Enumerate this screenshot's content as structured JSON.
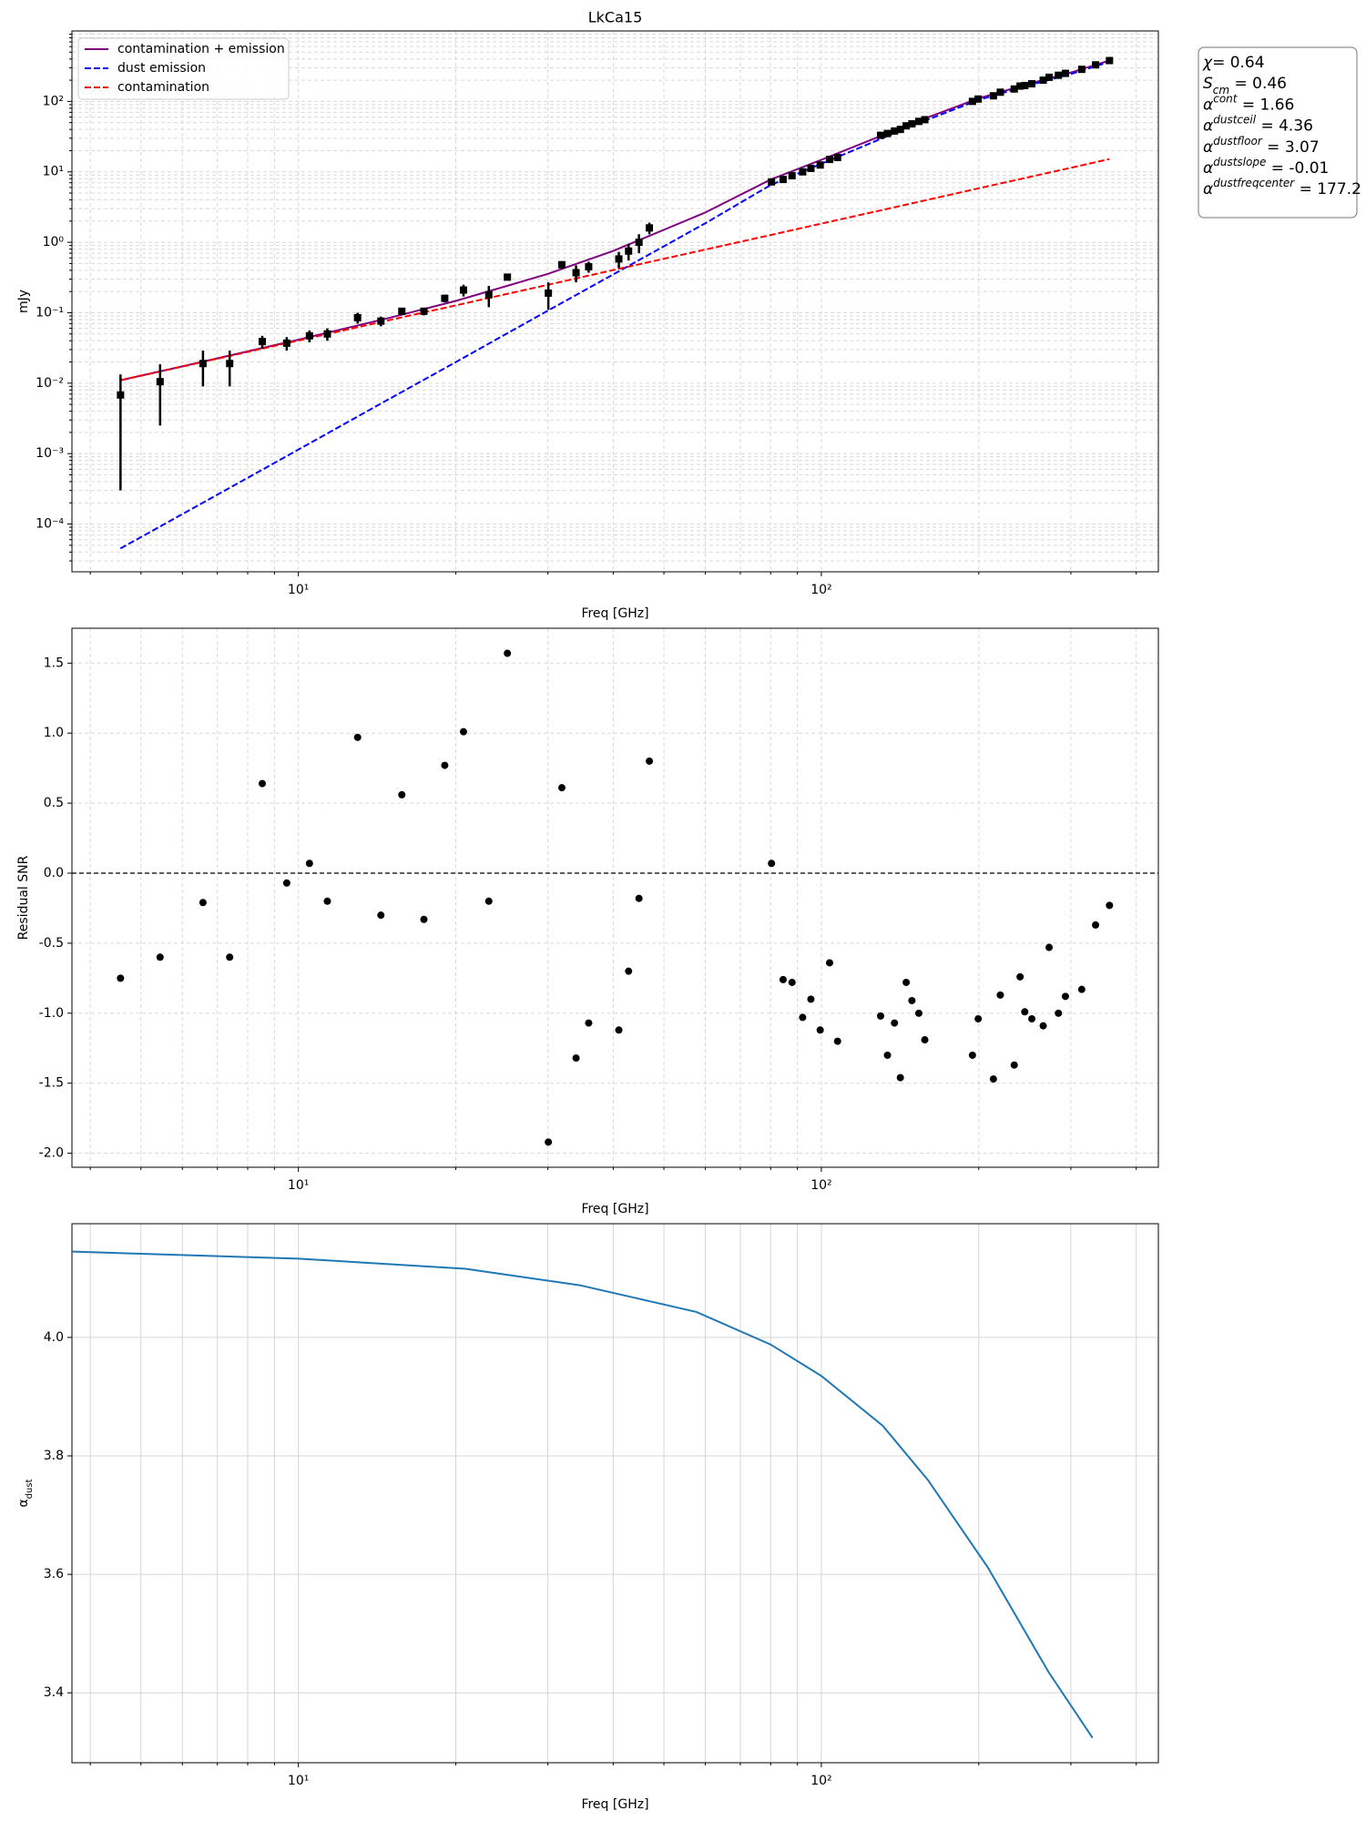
{
  "chart_data": [
    {
      "type": "line",
      "title": "LkCa15",
      "xlabel": "Freq [GHz]",
      "ylabel": "mJy",
      "xlog": true,
      "ylog": true,
      "grid": true,
      "grid_style": "dashed",
      "legend": "upper left",
      "xlim": [
        3.69,
        441
      ],
      "ylim": [
        2.1e-05,
        1000
      ],
      "xticks": [
        {
          "value": 10,
          "label": "10¹"
        },
        {
          "value": 100,
          "label": "10²"
        }
      ],
      "xminorticks": [
        4,
        5,
        6,
        7,
        8,
        9,
        20,
        30,
        40,
        50,
        60,
        70,
        80,
        90,
        200,
        300,
        400
      ],
      "yticks": [
        {
          "value": 0.0001,
          "label": "10⁻⁴"
        },
        {
          "value": 0.001,
          "label": "10⁻³"
        },
        {
          "value": 0.01,
          "label": "10⁻²"
        },
        {
          "value": 0.1,
          "label": "10⁻¹"
        },
        {
          "value": 1,
          "label": "10⁰"
        },
        {
          "value": 10,
          "label": "10¹"
        },
        {
          "value": 100,
          "label": "10²"
        }
      ],
      "yminorticks": [
        3e-05,
        4e-05,
        5e-05,
        6e-05,
        7e-05,
        8e-05,
        9e-05,
        0.0002,
        0.0003,
        0.0004,
        0.0005,
        0.0006,
        0.0007,
        0.0008,
        0.0009,
        0.002,
        0.003,
        0.004,
        0.005,
        0.006,
        0.007,
        0.008,
        0.009,
        0.02,
        0.03,
        0.04,
        0.05,
        0.06,
        0.07,
        0.08,
        0.09,
        0.2,
        0.3,
        0.4,
        0.5,
        0.6,
        0.7,
        0.8,
        0.9,
        2,
        3,
        4,
        5,
        6,
        7,
        8,
        9,
        20,
        30,
        40,
        50,
        60,
        70,
        80,
        90,
        200,
        300,
        400,
        500,
        600,
        700,
        800,
        900
      ],
      "series": [
        {
          "name": "contamination + emission",
          "color": "#800080",
          "linestyle": "solid",
          "x": [
            4.57,
            6,
            8,
            10,
            15,
            20,
            30,
            40,
            60,
            80,
            100,
            150,
            200,
            250,
            300,
            355.6
          ],
          "values": [
            0.011,
            0.0173,
            0.0283,
            0.0414,
            0.0852,
            0.147,
            0.356,
            0.753,
            2.65,
            7.77,
            14.8,
            49.6,
            110.8,
            178.5,
            256.4,
            380.2
          ]
        },
        {
          "name": "dust emission",
          "color": "#0000ff",
          "linestyle": "dashed",
          "x": [
            4.57,
            6,
            8,
            10,
            15,
            20,
            30,
            40,
            60,
            80,
            100,
            150,
            200,
            250,
            300,
            355.6
          ],
          "values": [
            4.5e-05,
            0.000138,
            0.000453,
            0.00114,
            0.0061,
            0.0199,
            0.107,
            0.35,
            1.86,
            6.5,
            13,
            46,
            105,
            170,
            245,
            365
          ]
        },
        {
          "name": "contamination",
          "color": "#ff0000",
          "linestyle": "dashed",
          "x": [
            4.57,
            6,
            8,
            10,
            15,
            20,
            30,
            40,
            60,
            80,
            100,
            150,
            200,
            250,
            300,
            355.6
          ],
          "values": [
            0.011,
            0.0172,
            0.0278,
            0.0403,
            0.0791,
            0.1273,
            0.249,
            0.403,
            0.789,
            1.27,
            1.84,
            3.61,
            5.84,
            8.45,
            11.4,
            15.2
          ]
        }
      ],
      "points": {
        "color": "#000000",
        "x": [
          4.57,
          5.44,
          6.57,
          7.39,
          8.53,
          9.5,
          10.5,
          11.36,
          12.98,
          14.38,
          15.77,
          17.38,
          19.05,
          20.69,
          23.13,
          25.1,
          30.06,
          31.9,
          33.96,
          35.9,
          41.0,
          42.8,
          44.8,
          46.9,
          80.3,
          84.5,
          87.9,
          92.1,
          95.5,
          99.5,
          103.7,
          107.4,
          129.8,
          133.8,
          138.0,
          141.6,
          145.3,
          149.0,
          153.6,
          157.7,
          194.5,
          199.5,
          213.3,
          219.9,
          233.8,
          239.9,
          244.9,
          252.6,
          265.6,
          272.6,
          284,
          292.9,
          314.7,
          334.5,
          355.6
        ],
        "values": [
          0.0068,
          0.0105,
          0.019,
          0.019,
          0.039,
          0.037,
          0.047,
          0.05,
          0.085,
          0.076,
          0.105,
          0.105,
          0.16,
          0.21,
          0.18,
          0.32,
          0.19,
          0.48,
          0.37,
          0.45,
          0.58,
          0.75,
          1.0,
          1.6,
          7.2,
          7.8,
          8.8,
          10,
          11.2,
          12.5,
          15,
          16,
          33,
          35,
          38,
          40,
          45,
          48,
          52,
          55,
          100,
          108,
          120,
          135,
          150,
          165,
          168,
          178,
          200,
          220,
          235,
          250,
          285,
          330,
          380
        ],
        "errors": [
          0.0065,
          0.008,
          0.01,
          0.01,
          0.008,
          0.008,
          0.009,
          0.01,
          0.015,
          0.012,
          0.01,
          0.013,
          0.02,
          0.04,
          0.06,
          0.03,
          0.08,
          0.06,
          0.1,
          0.08,
          0.15,
          0.2,
          0.3,
          0.3,
          0.5,
          0.5,
          0.5,
          0.6,
          0.6,
          0.7,
          0.8,
          0.8,
          1.5,
          1.5,
          1.5,
          1.5,
          2,
          2,
          2,
          2,
          4,
          4,
          5,
          5,
          5,
          6,
          6,
          6,
          7,
          7,
          8,
          8,
          9,
          10,
          12
        ]
      },
      "annotation": [
        {
          "symbol": "χ",
          "text": "= 0.64"
        },
        {
          "symbol": "S",
          "sub": "cm",
          "text": " = 0.46"
        },
        {
          "symbol": "α",
          "sup": "cont",
          "text": " = 1.66"
        },
        {
          "symbol": "α",
          "sup": "dustceil",
          "text": " = 4.36"
        },
        {
          "symbol": "α",
          "sup": "dustfloor",
          "text": " = 3.07"
        },
        {
          "symbol": "α",
          "sup": "dustslope",
          "text": " = -0.01"
        },
        {
          "symbol": "α",
          "sup": "dustfreqcenter",
          "text": " = 177.2"
        }
      ]
    },
    {
      "type": "scatter",
      "xlabel": "Freq [GHz]",
      "ylabel": "Residual SNR",
      "xlog": true,
      "grid": true,
      "grid_style": "dashed",
      "color": "#000000",
      "hline": 0,
      "xlim": [
        3.69,
        441
      ],
      "ylim": [
        -2.1,
        1.749
      ],
      "xticks": [
        {
          "value": 10,
          "label": "10¹"
        },
        {
          "value": 100,
          "label": "10²"
        }
      ],
      "xminorticks": [
        4,
        5,
        6,
        7,
        8,
        9,
        20,
        30,
        40,
        50,
        60,
        70,
        80,
        90,
        200,
        300,
        400
      ],
      "yticks": [
        {
          "value": -2,
          "label": "-2.0"
        },
        -1.5,
        {
          "value": -1,
          "label": "-1.0"
        },
        -0.5,
        {
          "value": 0,
          "label": "0.0"
        },
        0.5,
        {
          "value": 1,
          "label": "1.0"
        },
        1.5
      ],
      "x": [
        4.57,
        5.44,
        6.57,
        7.39,
        8.53,
        9.5,
        10.5,
        11.36,
        12.98,
        14.38,
        15.77,
        17.38,
        19.05,
        20.69,
        23.13,
        25.1,
        30.06,
        31.9,
        33.96,
        35.9,
        41.0,
        42.8,
        44.8,
        46.9,
        80.3,
        84.5,
        87.9,
        92.1,
        95.5,
        99.5,
        103.7,
        107.4,
        129.8,
        133.8,
        138.0,
        141.6,
        145.3,
        149.0,
        153.6,
        157.7,
        194.5,
        199.5,
        213.3,
        219.9,
        233.8,
        239.9,
        244.9,
        252.6,
        265.6,
        272.6,
        284,
        292.9,
        314.7,
        334.5,
        355.6
      ],
      "values": [
        -0.75,
        -0.6,
        -0.21,
        -0.6,
        0.64,
        -0.07,
        0.07,
        -0.2,
        0.97,
        -0.3,
        0.56,
        -0.33,
        0.77,
        1.01,
        -0.2,
        1.57,
        -1.92,
        0.61,
        -1.32,
        -1.07,
        -1.12,
        -0.7,
        -0.18,
        0.8,
        0.07,
        -0.76,
        -0.78,
        -1.03,
        -0.9,
        -1.12,
        -0.64,
        -1.2,
        -1.02,
        -1.3,
        -1.07,
        -1.46,
        -0.78,
        -0.91,
        -1.0,
        -1.19,
        -1.3,
        -1.04,
        -1.47,
        -0.87,
        -1.37,
        -0.74,
        -0.99,
        -1.04,
        -1.09,
        -0.53,
        -1.0,
        -0.88,
        -0.83,
        -0.37,
        -0.23
      ]
    },
    {
      "type": "line",
      "xlabel": "Freq [GHz]",
      "ylabel": "α",
      "ylabel_sub": "dust",
      "xlog": true,
      "grid": true,
      "grid_style": "solid",
      "color": "#1f77b4",
      "xlim": [
        3.69,
        441
      ],
      "ylim": [
        3.282,
        4.192
      ],
      "xticks": [
        {
          "value": 10,
          "label": "10¹"
        },
        {
          "value": 100,
          "label": "10²"
        }
      ],
      "xminorticks": [
        4,
        5,
        6,
        7,
        8,
        9,
        20,
        30,
        40,
        50,
        60,
        70,
        80,
        90,
        200,
        300,
        400
      ],
      "yticks": [
        3.4,
        3.6,
        3.8,
        {
          "value": 4,
          "label": "4.0"
        }
      ],
      "x": [
        3.7,
        10,
        20.8,
        34.6,
        57.7,
        80,
        100,
        131,
        160,
        208,
        272,
        330
      ],
      "values": [
        4.145,
        4.133,
        4.116,
        4.088,
        4.043,
        3.988,
        3.935,
        3.851,
        3.759,
        3.612,
        3.435,
        3.324
      ]
    }
  ]
}
